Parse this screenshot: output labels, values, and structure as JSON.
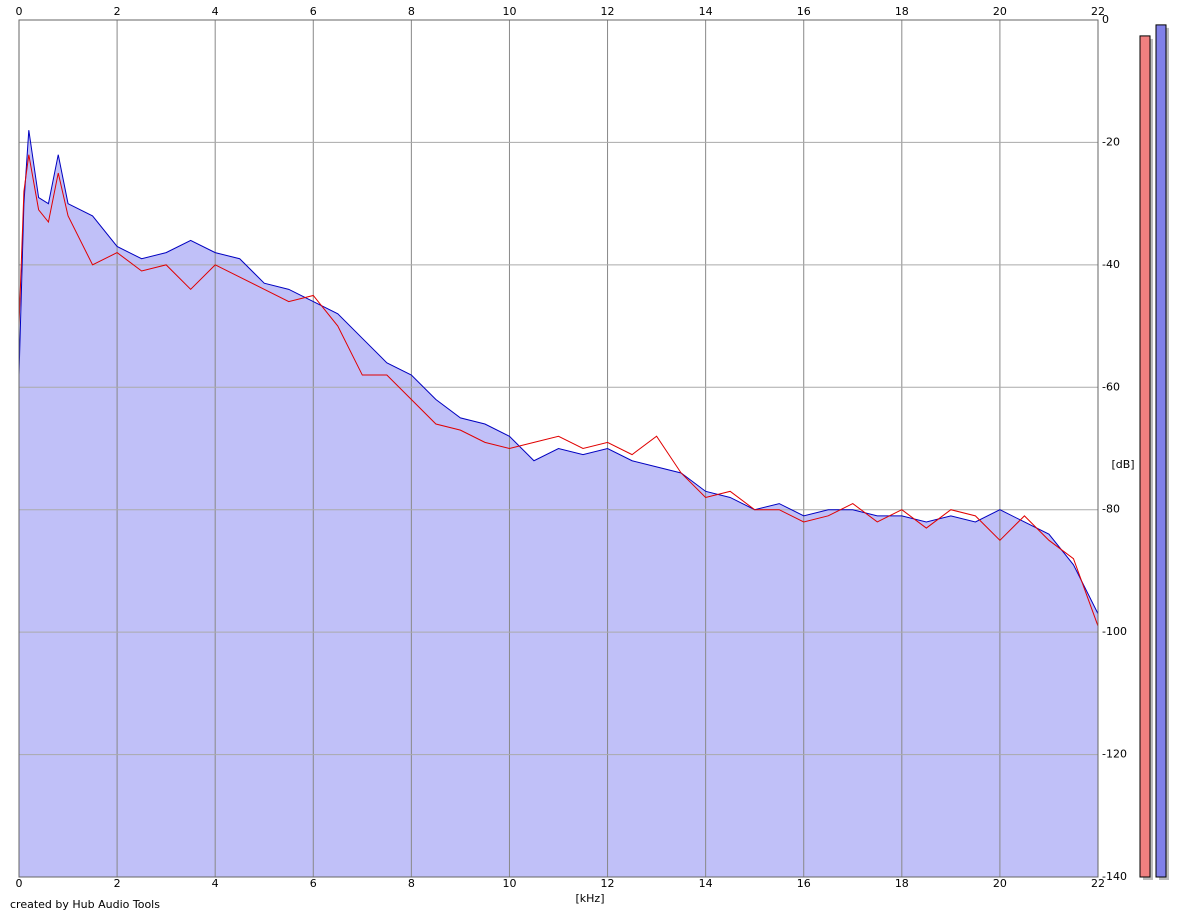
{
  "chart_data": {
    "type": "area",
    "xlabel": "[kHz]",
    "ylabel": "[dB]",
    "footer": "created by Hub Audio Tools",
    "x": [
      0,
      0.1,
      0.2,
      0.4,
      0.6,
      0.8,
      1,
      1.5,
      2,
      2.5,
      3,
      3.5,
      4,
      4.5,
      5,
      5.5,
      6,
      6.5,
      7,
      7.5,
      8,
      8.5,
      9,
      9.5,
      10,
      10.5,
      11,
      11.5,
      12,
      12.5,
      13,
      13.5,
      14,
      14.5,
      15,
      15.5,
      16,
      16.5,
      17,
      17.5,
      18,
      18.5,
      19,
      19.5,
      20,
      20.5,
      21,
      21.5,
      22
    ],
    "series": [
      {
        "color": "#0000c0",
        "fill": "#c0c0f8",
        "values": [
          -58,
          -30,
          -18,
          -29,
          -30,
          -22,
          -30,
          -32,
          -37,
          -39,
          -38,
          -36,
          -38,
          -39,
          -43,
          -44,
          -46,
          -48,
          -52,
          -56,
          -58,
          -62,
          -65,
          -66,
          -68,
          -72,
          -70,
          -71,
          -70,
          -72,
          -73,
          -74,
          -77,
          -78,
          -80,
          -79,
          -81,
          -80,
          -80,
          -81,
          -81,
          -82,
          -81,
          -82,
          -80,
          -82,
          -84,
          -89,
          -97
        ]
      },
      {
        "color": "#e00000",
        "values": [
          -50,
          -28,
          -22,
          -31,
          -33,
          -25,
          -32,
          -40,
          -38,
          -41,
          -40,
          -44,
          -40,
          -42,
          -44,
          -46,
          -45,
          -50,
          -58,
          -58,
          -62,
          -66,
          -67,
          -69,
          -70,
          -69,
          -68,
          -70,
          -69,
          -71,
          -68,
          -74,
          -78,
          -77,
          -80,
          -80,
          -82,
          -81,
          -79,
          -82,
          -80,
          -83,
          -80,
          -81,
          -85,
          -81,
          -85,
          -88,
          -99
        ]
      }
    ],
    "xlim": [
      0,
      22
    ],
    "xticks": [
      0,
      2,
      4,
      6,
      8,
      10,
      12,
      14,
      16,
      18,
      20,
      22
    ],
    "ylim": [
      -140,
      0
    ],
    "yticks": [
      0,
      -20,
      -40,
      -60,
      -80,
      -100,
      -120,
      -140
    ],
    "grid": true,
    "meters": [
      {
        "color": "#f08080",
        "value": -2.6
      },
      {
        "color": "#8080e8",
        "value": -0.8
      }
    ]
  }
}
